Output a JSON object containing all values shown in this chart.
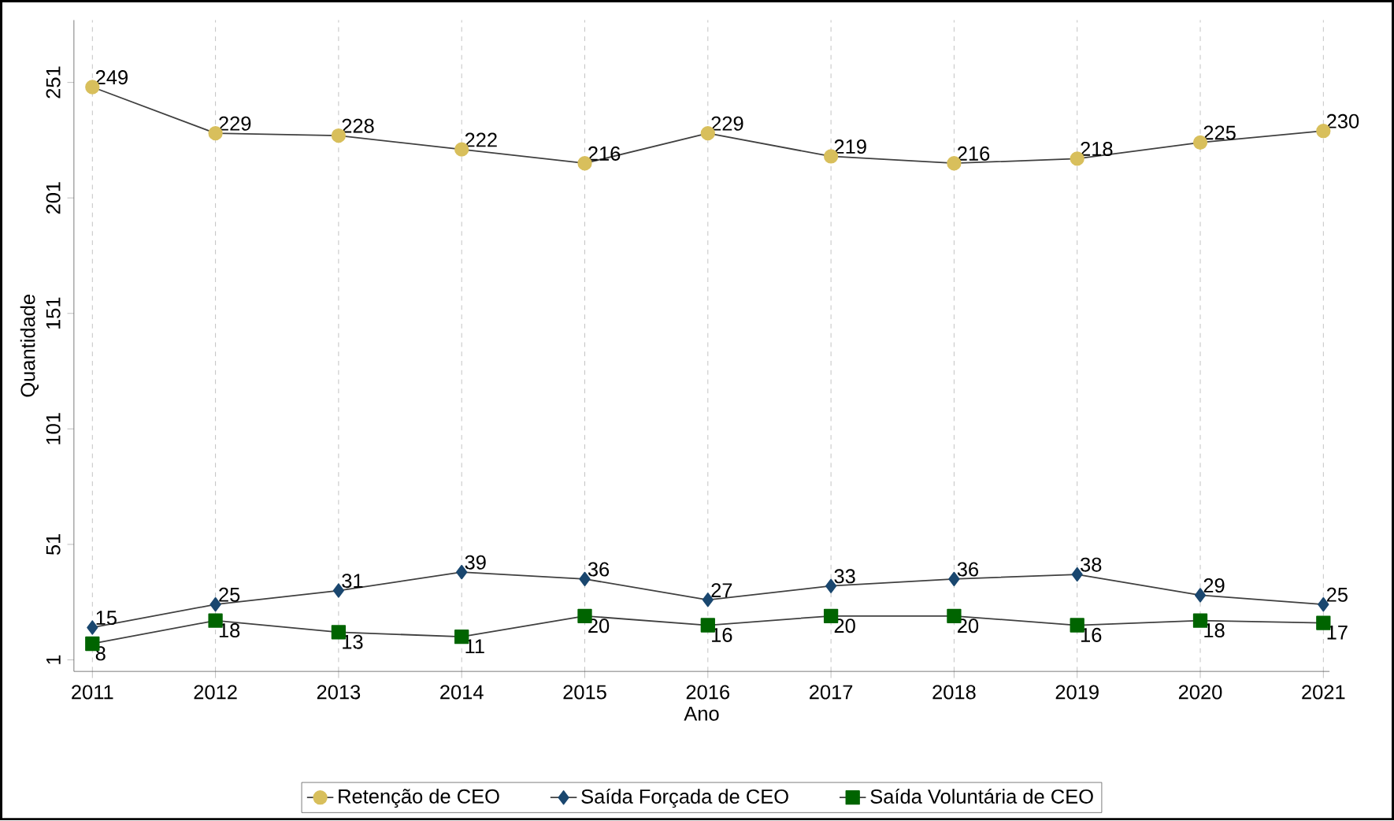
{
  "chart_data": {
    "type": "line",
    "xlabel": "Ano",
    "ylabel": "Quantidade",
    "x": [
      2011,
      2012,
      2013,
      2014,
      2015,
      2016,
      2017,
      2018,
      2019,
      2020,
      2021
    ],
    "xlim": [
      2010.85,
      2021.05
    ],
    "xticks": [
      2011,
      2012,
      2013,
      2014,
      2015,
      2016,
      2017,
      2018,
      2019,
      2020,
      2021
    ],
    "ylim": [
      -4,
      278
    ],
    "yticks": [
      1,
      51,
      101,
      151,
      201,
      251
    ],
    "grid": "x",
    "legend": "bottom",
    "data_labels": true,
    "series": [
      {
        "name": "Retenção de CEO",
        "color": "#d8bf5c",
        "marker": "circle",
        "values": [
          249,
          229,
          228,
          222,
          216,
          229,
          219,
          216,
          218,
          225,
          230
        ]
      },
      {
        "name": "Saída Forçada de CEO",
        "color": "#1a476f",
        "marker": "diamond",
        "values": [
          15,
          25,
          31,
          39,
          36,
          27,
          33,
          36,
          38,
          29,
          25
        ]
      },
      {
        "name": "Saída Voluntária de CEO",
        "color": "#006400",
        "marker": "square",
        "values": [
          8,
          18,
          13,
          11,
          20,
          16,
          20,
          20,
          16,
          18,
          17
        ]
      }
    ]
  }
}
